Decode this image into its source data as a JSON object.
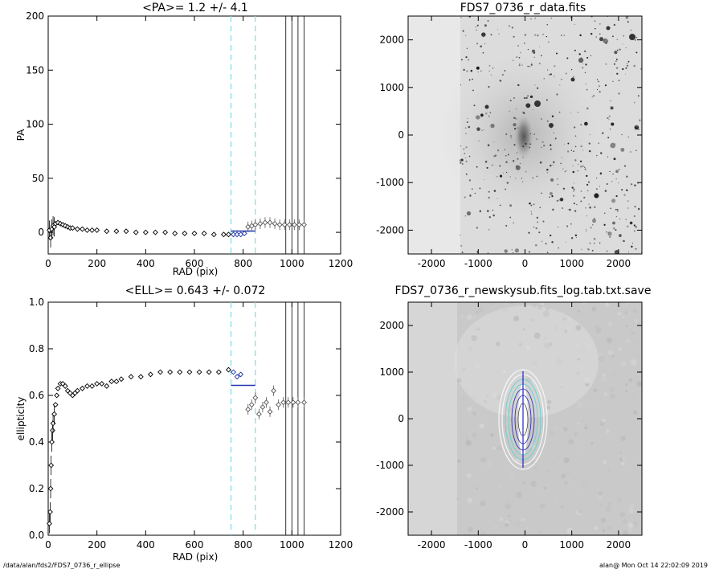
{
  "footer": {
    "left": "/data/alan/fds2/FDS7_0736_r_ellipse",
    "right": "alan@  Mon Oct 14 22:02:09 2019"
  },
  "chart_data": [
    {
      "type": "scatter",
      "title": "<PA>=   1.2 +/-   4.1",
      "xlabel": "RAD (pix)",
      "ylabel": "PA",
      "xlim": [
        0,
        1200
      ],
      "ylim": [
        -20,
        200
      ],
      "xticks": [
        "0",
        "200",
        "400",
        "600",
        "800",
        "1000",
        "1200"
      ],
      "yticks": [
        "0",
        "50",
        "100",
        "150",
        "200"
      ],
      "series": [
        {
          "x": [
            5,
            10,
            15,
            20,
            25,
            30,
            40,
            50,
            60,
            70,
            80,
            90,
            100,
            120,
            140,
            160,
            180,
            200,
            240,
            280,
            320,
            360,
            400,
            440,
            480,
            520,
            560,
            600,
            640,
            680,
            720,
            740
          ],
          "y": [
            2,
            -5,
            3,
            6,
            5,
            8,
            9,
            8,
            7,
            6,
            5,
            4,
            4,
            3,
            3,
            2,
            2,
            2,
            1,
            1,
            1,
            0,
            0,
            0,
            0,
            -1,
            -1,
            -1,
            -1,
            -2,
            -2,
            -2
          ]
        },
        {
          "x": [
            760,
            775,
            790,
            805
          ],
          "y": [
            -2,
            -2,
            -2,
            -1
          ]
        },
        {
          "x": [
            820,
            835,
            850,
            870,
            890,
            910,
            930,
            950,
            970,
            990,
            1010,
            1030,
            1050
          ],
          "y": [
            5,
            6,
            7,
            8,
            9,
            9,
            8,
            7,
            7,
            7,
            7,
            7,
            7
          ]
        }
      ],
      "mean_line": {
        "x": [
          750,
          850
        ],
        "y": 1.2
      },
      "dashed_vlines": [
        750,
        850
      ],
      "solid_vlines": [
        975,
        1000,
        1025,
        1050
      ]
    },
    {
      "type": "scatter",
      "title": "<ELL>= 0.643 +/-  0.072",
      "xlabel": "RAD (pix)",
      "ylabel": "ellipticity",
      "xlim": [
        0,
        1200
      ],
      "ylim": [
        0,
        1
      ],
      "xticks": [
        "0",
        "200",
        "400",
        "600",
        "800",
        "1000",
        "1200"
      ],
      "yticks": [
        "0.0",
        "0.2",
        "0.4",
        "0.6",
        "0.8",
        "1.0"
      ],
      "series": [
        {
          "x": [
            5,
            8,
            10,
            12,
            15,
            18,
            20,
            25,
            30,
            35,
            40,
            50,
            60,
            70,
            80,
            90,
            100,
            110,
            120,
            140,
            160,
            180,
            200,
            220,
            240,
            260,
            280,
            300,
            340,
            380,
            420,
            460,
            500,
            540,
            580,
            620,
            660,
            700,
            740
          ],
          "y": [
            0.05,
            0.1,
            0.2,
            0.3,
            0.4,
            0.45,
            0.48,
            0.52,
            0.56,
            0.6,
            0.63,
            0.65,
            0.65,
            0.64,
            0.62,
            0.61,
            0.6,
            0.61,
            0.62,
            0.63,
            0.64,
            0.64,
            0.65,
            0.65,
            0.64,
            0.66,
            0.66,
            0.67,
            0.68,
            0.68,
            0.69,
            0.7,
            0.7,
            0.7,
            0.7,
            0.7,
            0.7,
            0.7,
            0.71
          ]
        },
        {
          "x": [
            760,
            775,
            790
          ],
          "y": [
            0.7,
            0.68,
            0.69
          ]
        },
        {
          "x": [
            820,
            835,
            850,
            865,
            880,
            895,
            910,
            925,
            945,
            965,
            985,
            1005,
            1025,
            1050
          ],
          "y": [
            0.54,
            0.56,
            0.59,
            0.52,
            0.55,
            0.57,
            0.53,
            0.62,
            0.56,
            0.57,
            0.57,
            0.57,
            0.57,
            0.57
          ]
        }
      ],
      "mean_line": {
        "x": [
          750,
          850
        ],
        "y": 0.643
      },
      "dashed_vlines": [
        750,
        850
      ],
      "solid_vlines": [
        975,
        1000,
        1025,
        1050
      ]
    },
    {
      "type": "image",
      "title": "FDS7_0736_r_data.fits",
      "xlim": [
        -2500,
        2500
      ],
      "ylim": [
        -2500,
        2500
      ],
      "xticks": [
        "-2000",
        "-1000",
        "0",
        "1000",
        "2000"
      ],
      "yticks": [
        "-2000",
        "-1000",
        "0",
        "1000",
        "2000"
      ]
    },
    {
      "type": "image",
      "title": "FDS7_0736_r_newskysub.fits_log.tab.txt.save",
      "xlim": [
        -2500,
        2500
      ],
      "ylim": [
        -2500,
        2500
      ],
      "xticks": [
        "-2000",
        "-1000",
        "0",
        "1000",
        "2000"
      ],
      "yticks": [
        "-2000",
        "-1000",
        "0",
        "1000",
        "2000"
      ]
    }
  ]
}
